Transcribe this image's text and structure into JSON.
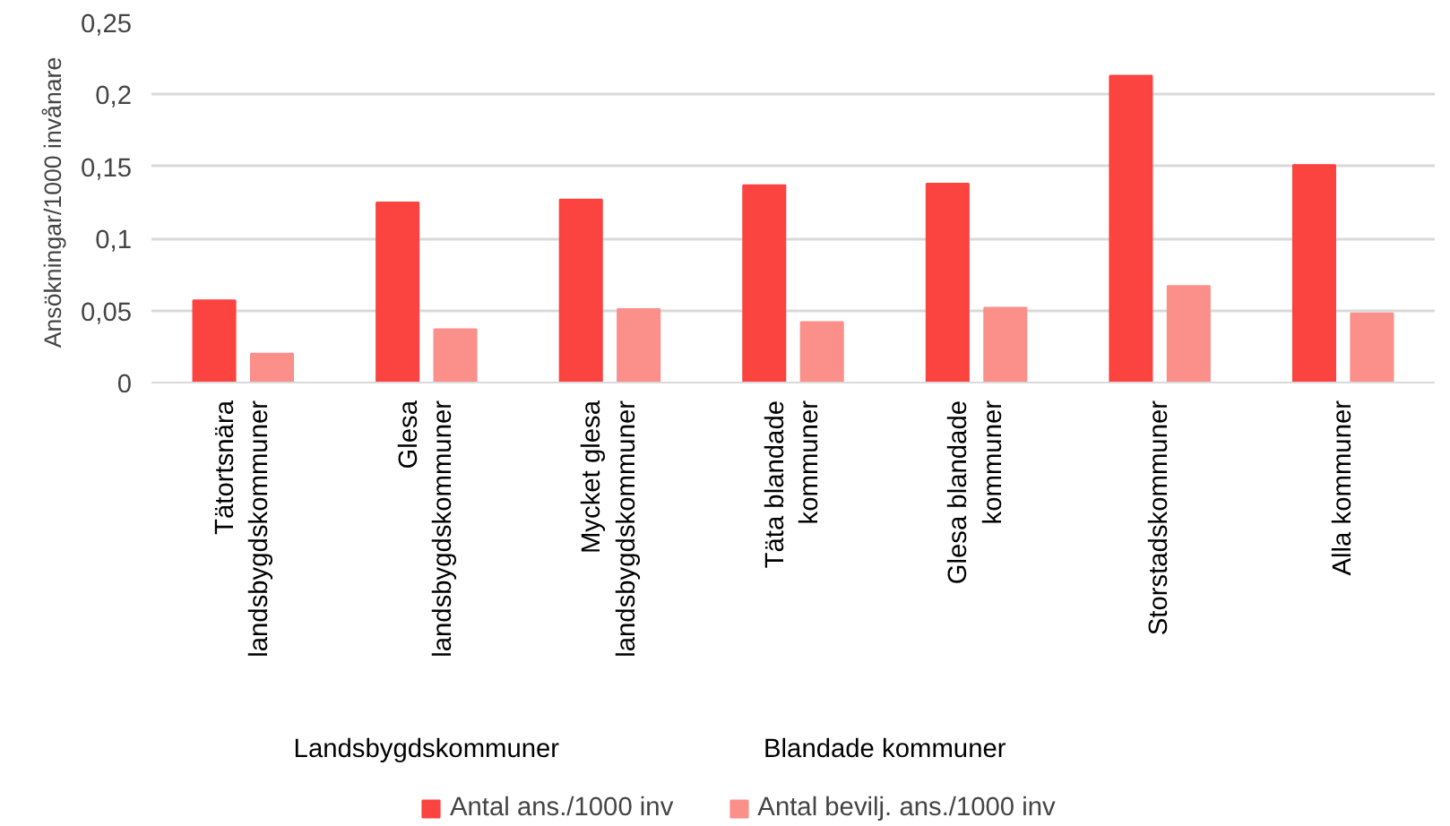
{
  "chart_data": {
    "type": "bar",
    "ylabel": "Ansökningar/1000 invånare",
    "categories": [
      "Tätortsnära\nlandsbygdskommuner",
      "Glesa\nlandsbygdskommuner",
      "Mycket glesa\nlandsbygdskommuner",
      "Täta blandade\nkommuner",
      "Glesa blandade\nkommuner",
      "Storstadskommuner",
      "Alla kommuner"
    ],
    "series": [
      {
        "name": "Antal ans./1000 inv",
        "color": "#fb4340",
        "values": [
          0.057,
          0.125,
          0.127,
          0.137,
          0.138,
          0.213,
          0.151
        ]
      },
      {
        "name": "Antal bevilj. ans./1000 inv",
        "color": "#fb8f8a",
        "values": [
          0.02,
          0.037,
          0.051,
          0.042,
          0.052,
          0.067,
          0.048
        ]
      }
    ],
    "ylim": [
      0,
      0.25
    ],
    "yticks": [
      0,
      {
        "value": 0.05,
        "label": "0,05"
      },
      {
        "value": 0.1,
        "label": "0,1"
      },
      {
        "value": 0.15,
        "label": "0,15"
      },
      {
        "value": 0.2,
        "label": "0,2"
      },
      {
        "value": 0.25,
        "label": "0,25"
      }
    ],
    "grid": "y",
    "legend": "bottom",
    "annotations": [
      "Landsbygdskommuner",
      "Blandade kommuner"
    ]
  }
}
